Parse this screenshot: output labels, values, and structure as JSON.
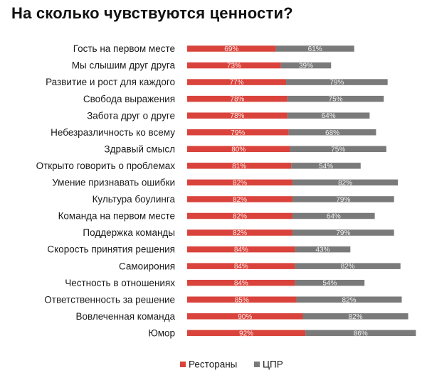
{
  "chart_data": {
    "type": "bar",
    "orientation": "horizontal",
    "stacked": true,
    "title": "На сколько чувствуются ценности?",
    "categories": [
      "Гость на первом месте",
      "Мы слышим друг друга",
      "Развитие и рост для каждого",
      "Свобода выражения",
      "Забота друг о друге",
      "Небезразличность ко всему",
      "Здравый смысл",
      "Открыто говорить о проблемах",
      "Умение признавать ошибки",
      "Культура боулинга",
      "Команда на первом месте",
      "Поддержка команды",
      "Скорость принятия решения",
      "Самоирония",
      "Честность в отношениях",
      "Ответственность за решение",
      "Вовлеченная команда",
      "Юмор"
    ],
    "series": [
      {
        "name": "Рестораны",
        "color": "#d9433b",
        "values": [
          69,
          73,
          77,
          78,
          78,
          79,
          80,
          81,
          82,
          82,
          82,
          82,
          84,
          84,
          84,
          85,
          90,
          92
        ],
        "labels": [
          "69%",
          "73%",
          "77%",
          "78%",
          "78%",
          "79%",
          "80%",
          "81%",
          "82%",
          "82%",
          "82%",
          "82%",
          "84%",
          "84%",
          "84%",
          "85%",
          "90%",
          "92%"
        ]
      },
      {
        "name": "ЦПР",
        "color": "#7a7a7a",
        "values": [
          61,
          39,
          79,
          75,
          64,
          68,
          75,
          54,
          82,
          79,
          64,
          79,
          43,
          82,
          54,
          82,
          82,
          86
        ],
        "labels": [
          "61%",
          "39%",
          "79%",
          "75%",
          "64%",
          "68%",
          "75%",
          "54%",
          "82%",
          "79%",
          "64%",
          "79%",
          "43%",
          "82%",
          "54%",
          "82%",
          "82%",
          "86%"
        ]
      }
    ],
    "xlim": [
      0,
      180
    ],
    "legend_position": "bottom",
    "grid": false
  }
}
